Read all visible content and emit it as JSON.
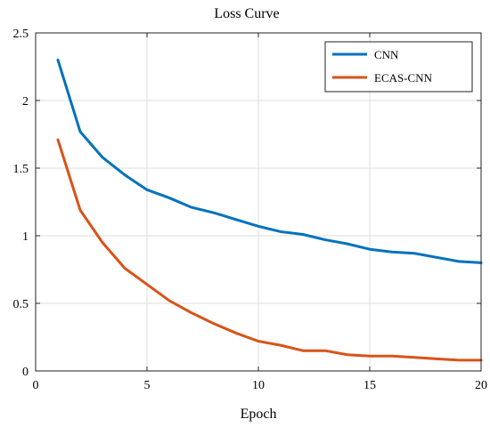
{
  "chart_data": {
    "type": "line",
    "title": "Loss Curve",
    "xlabel": "Epoch",
    "ylabel": "",
    "xlim": [
      0,
      20
    ],
    "ylim": [
      0,
      2.5
    ],
    "xticks": [
      0,
      5,
      10,
      15,
      20
    ],
    "yticks": [
      0,
      0.5,
      1,
      1.5,
      2,
      2.5
    ],
    "xtick_labels": [
      "0",
      "5",
      "10",
      "15",
      "20"
    ],
    "ytick_labels": [
      "0",
      "0.5",
      "1",
      "1.5",
      "2",
      "2.5"
    ],
    "grid": true,
    "legend_position": "top-right",
    "series": [
      {
        "name": "CNN",
        "color": "#0072BD",
        "x": [
          1,
          2,
          3,
          4,
          5,
          6,
          7,
          8,
          9,
          10,
          11,
          12,
          13,
          14,
          15,
          16,
          17,
          18,
          19,
          20
        ],
        "y": [
          2.3,
          1.77,
          1.58,
          1.45,
          1.34,
          1.28,
          1.21,
          1.17,
          1.12,
          1.07,
          1.03,
          1.01,
          0.97,
          0.94,
          0.9,
          0.88,
          0.87,
          0.84,
          0.81,
          0.8
        ]
      },
      {
        "name": "ECAS-CNN",
        "color": "#D95319",
        "x": [
          1,
          2,
          3,
          4,
          5,
          6,
          7,
          8,
          9,
          10,
          11,
          12,
          13,
          14,
          15,
          16,
          17,
          18,
          19,
          20
        ],
        "y": [
          1.71,
          1.19,
          0.95,
          0.76,
          0.64,
          0.52,
          0.43,
          0.35,
          0.28,
          0.22,
          0.19,
          0.15,
          0.15,
          0.12,
          0.11,
          0.11,
          0.1,
          0.09,
          0.08,
          0.08
        ]
      }
    ]
  }
}
